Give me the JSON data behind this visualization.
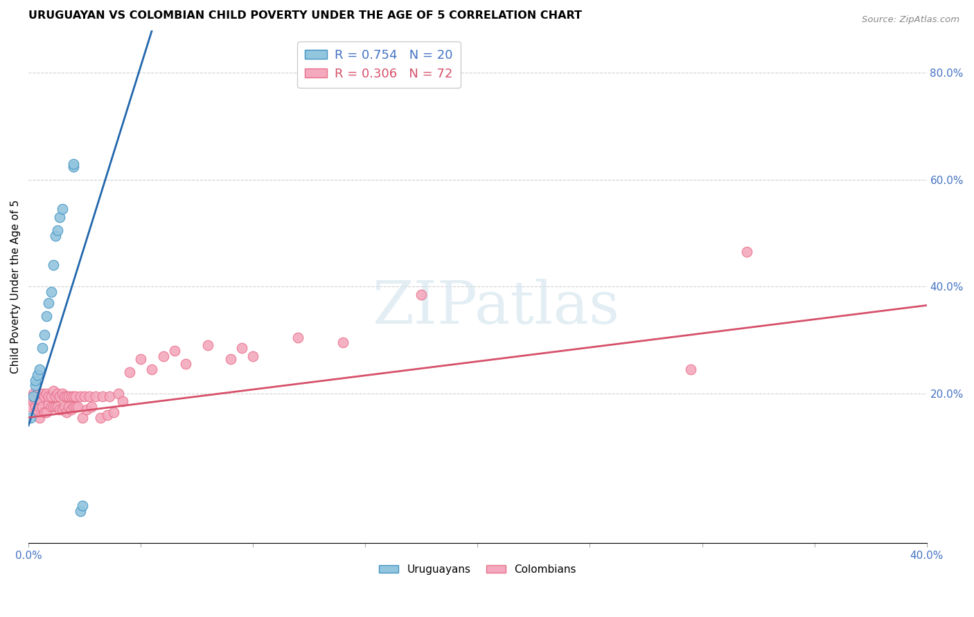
{
  "title": "URUGUAYAN VS COLOMBIAN CHILD POVERTY UNDER THE AGE OF 5 CORRELATION CHART",
  "source": "Source: ZipAtlas.com",
  "ylabel": "Child Poverty Under the Age of 5",
  "xlim": [
    0.0,
    0.4
  ],
  "ylim": [
    -0.08,
    0.88
  ],
  "right_yticks": [
    0.2,
    0.4,
    0.6,
    0.8
  ],
  "right_yticklabels": [
    "20.0%",
    "40.0%",
    "60.0%",
    "80.0%"
  ],
  "xtick_show": [
    0.0,
    0.4
  ],
  "uruguayan_color": "#92c5de",
  "colombian_color": "#f4a9be",
  "uruguayan_edge_color": "#4393c3",
  "colombian_edge_color": "#e8708a",
  "uruguayan_line_color": "#2166ac",
  "colombian_line_color": "#d6506a",
  "legend_line1": "R = 0.754   N = 20",
  "legend_line2": "R = 0.306   N = 72",
  "legend_label_uruguay": "Uruguayans",
  "legend_label_colombia": "Colombians",
  "watermark": "ZIPatlas",
  "uruguayan_x": [
    0.001,
    0.002,
    0.003,
    0.003,
    0.004,
    0.005,
    0.006,
    0.007,
    0.008,
    0.009,
    0.01,
    0.011,
    0.012,
    0.013,
    0.014,
    0.015,
    0.02,
    0.02,
    0.023,
    0.024
  ],
  "uruguayan_y": [
    0.155,
    0.195,
    0.215,
    0.225,
    0.235,
    0.245,
    0.285,
    0.31,
    0.345,
    0.37,
    0.39,
    0.44,
    0.495,
    0.505,
    0.53,
    0.545,
    0.625,
    0.63,
    -0.02,
    -0.01
  ],
  "colombian_x": [
    0.001,
    0.002,
    0.002,
    0.003,
    0.003,
    0.004,
    0.004,
    0.005,
    0.005,
    0.005,
    0.006,
    0.006,
    0.007,
    0.007,
    0.008,
    0.008,
    0.009,
    0.009,
    0.01,
    0.01,
    0.011,
    0.011,
    0.012,
    0.012,
    0.013,
    0.013,
    0.014,
    0.014,
    0.015,
    0.015,
    0.016,
    0.016,
    0.017,
    0.017,
    0.018,
    0.018,
    0.019,
    0.019,
    0.02,
    0.02,
    0.021,
    0.021,
    0.022,
    0.023,
    0.024,
    0.025,
    0.026,
    0.027,
    0.028,
    0.03,
    0.032,
    0.033,
    0.035,
    0.036,
    0.038,
    0.04,
    0.042,
    0.045,
    0.05,
    0.055,
    0.06,
    0.065,
    0.07,
    0.08,
    0.09,
    0.095,
    0.1,
    0.12,
    0.14,
    0.175,
    0.295,
    0.32
  ],
  "colombian_y": [
    0.175,
    0.185,
    0.2,
    0.175,
    0.19,
    0.17,
    0.2,
    0.155,
    0.175,
    0.19,
    0.175,
    0.2,
    0.165,
    0.195,
    0.165,
    0.2,
    0.18,
    0.195,
    0.175,
    0.195,
    0.175,
    0.205,
    0.175,
    0.195,
    0.175,
    0.2,
    0.17,
    0.195,
    0.17,
    0.2,
    0.175,
    0.195,
    0.165,
    0.195,
    0.175,
    0.195,
    0.17,
    0.195,
    0.175,
    0.195,
    0.175,
    0.195,
    0.175,
    0.195,
    0.155,
    0.195,
    0.17,
    0.195,
    0.175,
    0.195,
    0.155,
    0.195,
    0.16,
    0.195,
    0.165,
    0.2,
    0.185,
    0.24,
    0.265,
    0.245,
    0.27,
    0.28,
    0.255,
    0.29,
    0.265,
    0.285,
    0.27,
    0.305,
    0.295,
    0.385,
    0.245,
    0.465
  ],
  "blue_line_x0": 0.0,
  "blue_line_y0": 0.14,
  "blue_line_x1": 0.055,
  "blue_line_y1": 0.88,
  "pink_line_x0": 0.0,
  "pink_line_y0": 0.155,
  "pink_line_x1": 0.4,
  "pink_line_y1": 0.365
}
